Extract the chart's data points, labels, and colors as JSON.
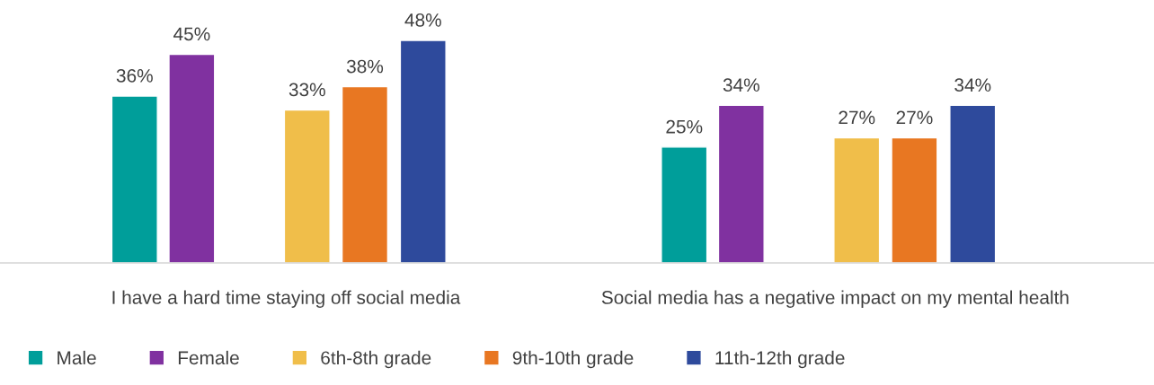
{
  "chart_data": {
    "type": "bar",
    "categories": [
      "I have a hard time staying off social media",
      "Social media has a negative impact on my mental health"
    ],
    "series": [
      {
        "name": "Male",
        "color": "#009e9a",
        "values": [
          36,
          25
        ],
        "value_labels": [
          "36%",
          "25%"
        ]
      },
      {
        "name": "Female",
        "color": "#8031a0",
        "values": [
          45,
          34
        ],
        "value_labels": [
          "45%",
          "34%"
        ]
      },
      {
        "name": "6th-8th grade",
        "color": "#f0be4a",
        "values": [
          33,
          27
        ],
        "value_labels": [
          "33%",
          "27%"
        ]
      },
      {
        "name": "9th-10th grade",
        "color": "#e87722",
        "values": [
          38,
          27
        ],
        "value_labels": [
          "38%",
          "27%"
        ]
      },
      {
        "name": "11th-12th grade",
        "color": "#2e4a9c",
        "values": [
          48,
          34
        ],
        "value_labels": [
          "48%",
          "34%"
        ]
      }
    ],
    "legend": "bottom left",
    "grid": false
  }
}
